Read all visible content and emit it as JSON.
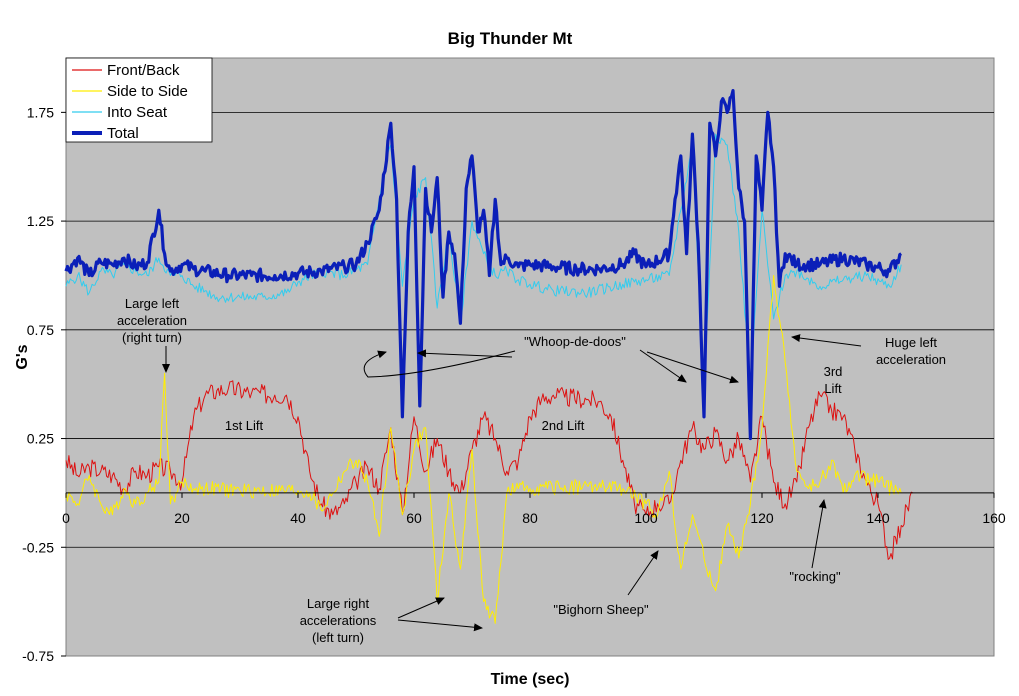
{
  "chart_data": {
    "type": "line",
    "title": "Big Thunder Mt",
    "xlabel": "Time (sec)",
    "ylabel": "G's",
    "xlim": [
      0,
      160
    ],
    "ylim": [
      -0.75,
      2.0
    ],
    "x_ticks": [
      "0",
      "20",
      "40",
      "60",
      "80",
      "100",
      "120",
      "140",
      "160"
    ],
    "y_ticks": [
      "1.75",
      "1.25",
      "0.75",
      "0.25",
      "-0.25",
      "-0.75"
    ],
    "grid": true,
    "legend_position": "top-left",
    "series": [
      {
        "name": "Front/Back",
        "color": "#dd1111",
        "points": [
          [
            0,
            0.15
          ],
          [
            2,
            0.08
          ],
          [
            4,
            0.12
          ],
          [
            6,
            0.1
          ],
          [
            8,
            0.08
          ],
          [
            10,
            0.02
          ],
          [
            12,
            0.1
          ],
          [
            14,
            0.08
          ],
          [
            16,
            0.12
          ],
          [
            18,
            0.1
          ],
          [
            20,
            0.05
          ],
          [
            22,
            0.35
          ],
          [
            24,
            0.45
          ],
          [
            26,
            0.47
          ],
          [
            28,
            0.48
          ],
          [
            32,
            0.46
          ],
          [
            36,
            0.45
          ],
          [
            38,
            0.45
          ],
          [
            40,
            0.35
          ],
          [
            42,
            0.1
          ],
          [
            44,
            -0.05
          ],
          [
            46,
            -0.1
          ],
          [
            48,
            -0.05
          ],
          [
            50,
            0.05
          ],
          [
            52,
            0.12
          ],
          [
            54,
            0.02
          ],
          [
            56,
            0.3
          ],
          [
            58,
            -0.1
          ],
          [
            60,
            0.35
          ],
          [
            62,
            0.1
          ],
          [
            64,
            0.25
          ],
          [
            66,
            0.1
          ],
          [
            68,
            0.0
          ],
          [
            70,
            0.2
          ],
          [
            72,
            0.35
          ],
          [
            74,
            0.25
          ],
          [
            76,
            0.1
          ],
          [
            78,
            0.15
          ],
          [
            80,
            0.35
          ],
          [
            82,
            0.43
          ],
          [
            84,
            0.45
          ],
          [
            86,
            0.44
          ],
          [
            90,
            0.43
          ],
          [
            92,
            0.42
          ],
          [
            94,
            0.35
          ],
          [
            96,
            0.15
          ],
          [
            98,
            -0.05
          ],
          [
            100,
            -0.1
          ],
          [
            102,
            -0.05
          ],
          [
            104,
            -0.05
          ],
          [
            106,
            0.15
          ],
          [
            108,
            0.3
          ],
          [
            110,
            0.2
          ],
          [
            112,
            0.28
          ],
          [
            114,
            0.15
          ],
          [
            116,
            0.25
          ],
          [
            118,
            0.05
          ],
          [
            120,
            0.35
          ],
          [
            122,
            0.05
          ],
          [
            124,
            -0.05
          ],
          [
            126,
            0.05
          ],
          [
            128,
            0.3
          ],
          [
            130,
            0.45
          ],
          [
            132,
            0.38
          ],
          [
            134,
            0.35
          ],
          [
            136,
            0.2
          ],
          [
            138,
            0.05
          ],
          [
            140,
            -0.05
          ],
          [
            142,
            -0.3
          ],
          [
            144,
            -0.15
          ],
          [
            146,
            0.0
          ]
        ]
      },
      {
        "name": "Side to Side",
        "color": "#ffee00",
        "points": [
          [
            0,
            0.0
          ],
          [
            2,
            -0.05
          ],
          [
            4,
            0.08
          ],
          [
            6,
            -0.05
          ],
          [
            8,
            -0.1
          ],
          [
            10,
            0.02
          ],
          [
            12,
            -0.05
          ],
          [
            14,
            0.0
          ],
          [
            16,
            0.05
          ],
          [
            17,
            0.55
          ],
          [
            18,
            -0.05
          ],
          [
            20,
            0.05
          ],
          [
            22,
            0.02
          ],
          [
            24,
            0.02
          ],
          [
            30,
            0.01
          ],
          [
            40,
            0.01
          ],
          [
            42,
            0.0
          ],
          [
            44,
            -0.08
          ],
          [
            46,
            0.0
          ],
          [
            48,
            0.1
          ],
          [
            50,
            0.15
          ],
          [
            52,
            0.05
          ],
          [
            54,
            -0.2
          ],
          [
            56,
            0.3
          ],
          [
            58,
            -0.1
          ],
          [
            60,
            0.2
          ],
          [
            62,
            0.3
          ],
          [
            64,
            -0.5
          ],
          [
            66,
            0.0
          ],
          [
            68,
            -0.35
          ],
          [
            70,
            0.2
          ],
          [
            72,
            -0.5
          ],
          [
            74,
            -0.6
          ],
          [
            76,
            0.0
          ],
          [
            78,
            0.02
          ],
          [
            80,
            0.02
          ],
          [
            90,
            0.03
          ],
          [
            96,
            0.02
          ],
          [
            100,
            -0.05
          ],
          [
            102,
            -0.1
          ],
          [
            104,
            0.1
          ],
          [
            106,
            -0.35
          ],
          [
            108,
            -0.1
          ],
          [
            110,
            -0.3
          ],
          [
            112,
            -0.45
          ],
          [
            114,
            -0.15
          ],
          [
            116,
            -0.3
          ],
          [
            118,
            -0.05
          ],
          [
            120,
            0.3
          ],
          [
            122,
            1.0
          ],
          [
            124,
            0.6
          ],
          [
            126,
            0.1
          ],
          [
            128,
            0.02
          ],
          [
            130,
            0.05
          ],
          [
            132,
            0.15
          ],
          [
            134,
            0.0
          ],
          [
            136,
            0.08
          ],
          [
            140,
            0.05
          ],
          [
            144,
            0.0
          ]
        ]
      },
      {
        "name": "Into Seat",
        "color": "#33ccee",
        "points": [
          [
            0,
            0.95
          ],
          [
            2,
            1.0
          ],
          [
            4,
            0.92
          ],
          [
            6,
            1.02
          ],
          [
            8,
            1.0
          ],
          [
            10,
            1.05
          ],
          [
            12,
            1.02
          ],
          [
            14,
            1.0
          ],
          [
            16,
            1.08
          ],
          [
            18,
            1.0
          ],
          [
            20,
            1.0
          ],
          [
            22,
            0.95
          ],
          [
            24,
            0.93
          ],
          [
            26,
            0.9
          ],
          [
            30,
            0.9
          ],
          [
            34,
            0.9
          ],
          [
            38,
            0.92
          ],
          [
            40,
            0.97
          ],
          [
            44,
            1.02
          ],
          [
            48,
            1.0
          ],
          [
            52,
            1.05
          ],
          [
            55,
            1.5
          ],
          [
            56,
            1.6
          ],
          [
            58,
            0.95
          ],
          [
            60,
            1.35
          ],
          [
            62,
            1.45
          ],
          [
            64,
            0.85
          ],
          [
            66,
            1.2
          ],
          [
            68,
            0.78
          ],
          [
            70,
            1.25
          ],
          [
            72,
            1.1
          ],
          [
            74,
            1.0
          ],
          [
            76,
            1.02
          ],
          [
            78,
            0.98
          ],
          [
            80,
            0.96
          ],
          [
            84,
            0.93
          ],
          [
            90,
            0.92
          ],
          [
            96,
            0.96
          ],
          [
            100,
            0.98
          ],
          [
            104,
            1.0
          ],
          [
            106,
            1.3
          ],
          [
            108,
            1.6
          ],
          [
            110,
            0.45
          ],
          [
            112,
            1.65
          ],
          [
            114,
            1.6
          ],
          [
            116,
            1.2
          ],
          [
            118,
            0.5
          ],
          [
            120,
            1.3
          ],
          [
            122,
            0.8
          ],
          [
            124,
            1.0
          ],
          [
            126,
            1.02
          ],
          [
            130,
            0.95
          ],
          [
            134,
            0.98
          ],
          [
            138,
            1.0
          ],
          [
            142,
            0.95
          ],
          [
            144,
            1.05
          ]
        ]
      },
      {
        "name": "Total",
        "color": "#0b1fb8",
        "points": [
          [
            0,
            1.02
          ],
          [
            2,
            1.08
          ],
          [
            4,
            1.0
          ],
          [
            6,
            1.06
          ],
          [
            8,
            1.05
          ],
          [
            10,
            1.08
          ],
          [
            12,
            1.04
          ],
          [
            14,
            1.06
          ],
          [
            16,
            1.3
          ],
          [
            17,
            1.1
          ],
          [
            18,
            1.02
          ],
          [
            20,
            1.05
          ],
          [
            22,
            1.03
          ],
          [
            24,
            1.02
          ],
          [
            28,
            1.0
          ],
          [
            32,
            1.0
          ],
          [
            36,
            1.0
          ],
          [
            40,
            1.01
          ],
          [
            44,
            1.02
          ],
          [
            48,
            1.04
          ],
          [
            50,
            1.05
          ],
          [
            52,
            1.15
          ],
          [
            54,
            1.3
          ],
          [
            56,
            1.7
          ],
          [
            57,
            1.35
          ],
          [
            58,
            0.35
          ],
          [
            59,
            1.2
          ],
          [
            60,
            1.5
          ],
          [
            61,
            0.4
          ],
          [
            62,
            1.4
          ],
          [
            63,
            1.2
          ],
          [
            64,
            1.45
          ],
          [
            65,
            0.9
          ],
          [
            66,
            1.2
          ],
          [
            67,
            1.1
          ],
          [
            68,
            0.78
          ],
          [
            69,
            1.4
          ],
          [
            70,
            1.55
          ],
          [
            71,
            1.2
          ],
          [
            72,
            1.3
          ],
          [
            73,
            1.0
          ],
          [
            74,
            1.35
          ],
          [
            75,
            1.05
          ],
          [
            76,
            1.08
          ],
          [
            78,
            1.04
          ],
          [
            80,
            1.05
          ],
          [
            84,
            1.04
          ],
          [
            88,
            1.03
          ],
          [
            92,
            1.03
          ],
          [
            96,
            1.05
          ],
          [
            98,
            1.1
          ],
          [
            100,
            1.04
          ],
          [
            104,
            1.1
          ],
          [
            105,
            1.35
          ],
          [
            106,
            1.55
          ],
          [
            107,
            1.1
          ],
          [
            108,
            1.65
          ],
          [
            109,
            1.15
          ],
          [
            110,
            0.35
          ],
          [
            111,
            1.7
          ],
          [
            112,
            1.55
          ],
          [
            113,
            1.8
          ],
          [
            114,
            1.75
          ],
          [
            115,
            1.85
          ],
          [
            116,
            1.4
          ],
          [
            117,
            1.25
          ],
          [
            118,
            0.25
          ],
          [
            119,
            1.55
          ],
          [
            120,
            1.3
          ],
          [
            121,
            1.75
          ],
          [
            122,
            1.5
          ],
          [
            123,
            0.95
          ],
          [
            124,
            1.1
          ],
          [
            126,
            1.05
          ],
          [
            130,
            1.05
          ],
          [
            134,
            1.08
          ],
          [
            138,
            1.05
          ],
          [
            142,
            1.02
          ],
          [
            144,
            1.1
          ]
        ]
      }
    ],
    "annotations": [
      {
        "lines": [
          "Large left",
          "acceleration",
          "(right turn)"
        ]
      },
      {
        "lines": [
          "1st Lift"
        ]
      },
      {
        "lines": [
          "2nd Lift"
        ]
      },
      {
        "lines": [
          "\"Whoop-de-doos\""
        ]
      },
      {
        "lines": [
          "Huge left",
          "acceleration"
        ]
      },
      {
        "lines": [
          "3rd",
          "Lift"
        ]
      },
      {
        "lines": [
          "Large right",
          "accelerations",
          "(left turn)"
        ]
      },
      {
        "lines": [
          "\"Bighorn Sheep\""
        ]
      },
      {
        "lines": [
          "\"rocking\""
        ]
      }
    ]
  }
}
